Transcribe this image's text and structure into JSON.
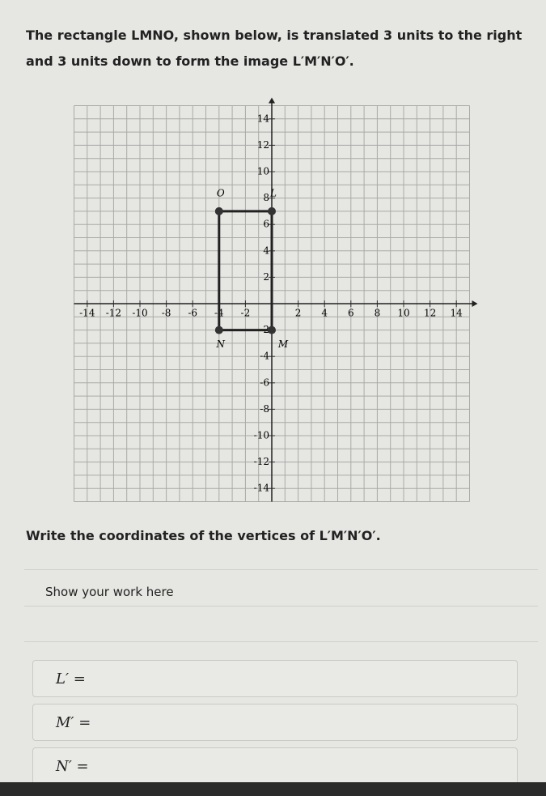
{
  "question": {
    "text": "The rectangle LMNO, shown below, is translated 3 units to the right and 3 units down to form the image L′M′N′O′."
  },
  "graph": {
    "xlim": [
      -15,
      15
    ],
    "ylim": [
      -15,
      15
    ],
    "xticks": [
      -14,
      -12,
      -10,
      -8,
      -6,
      -4,
      -2,
      2,
      4,
      6,
      8,
      10,
      12,
      14
    ],
    "yticks": [
      -14,
      -12,
      -10,
      -8,
      -6,
      -4,
      -2,
      2,
      4,
      6,
      8,
      10,
      12,
      14
    ],
    "vertices": [
      {
        "label": "L",
        "x": 0,
        "y": 7
      },
      {
        "label": "M",
        "x": 0,
        "y": -2
      },
      {
        "label": "N",
        "x": -4,
        "y": -2
      },
      {
        "label": "O",
        "x": -4,
        "y": 7
      }
    ]
  },
  "prompt": "Write the coordinates of the vertices of L′M′N′O′.",
  "work": {
    "label": "Show your work here"
  },
  "answers": [
    {
      "label": "L′ ="
    },
    {
      "label": "M′ ="
    },
    {
      "label": "N′ ="
    }
  ]
}
